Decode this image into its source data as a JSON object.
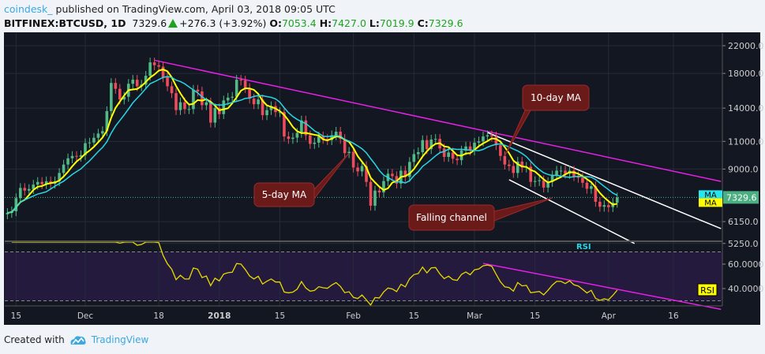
{
  "header": {
    "user": "coindesk_",
    "published": "published on TradingView.com, April 03, 2018 09:05 UTC",
    "symbol": "BITFINEX:BTCUSD, 1D",
    "last": "7329.6",
    "change": "+276.3 (+3.92%)",
    "o_label": "O:",
    "o": "7053.4",
    "h_label": "H:",
    "h": "7427.0",
    "l_label": "L:",
    "l": "7019.9",
    "c_label": "C:",
    "c": "7329.6",
    "change_icon": "triangle-up-icon"
  },
  "footer": {
    "created_with": "Created with",
    "brand": "TradingView",
    "logo_icon": "tradingview-cloud-icon"
  },
  "colors": {
    "background": "#131722",
    "up": "#53b987",
    "down": "#eb4d5c",
    "ma5": "#ffff00",
    "ma10": "#26d7e6",
    "trendline": "#e81fe8",
    "channel": "#ffffff",
    "rsi": "#e8d800",
    "rsi_band": "#261a40",
    "price_label": "#4caf82",
    "callout": "#6b1a1a"
  },
  "chart_data": {
    "type": "candlestick",
    "price_scale": "log",
    "grid": true,
    "start_date": "2017-11-13",
    "interval": "1D",
    "close": [
      6550,
      6630,
      7290,
      7850,
      7700,
      7790,
      8040,
      8200,
      8070,
      8240,
      8100,
      8240,
      8750,
      9300,
      9730,
      9900,
      9840,
      9950,
      10860,
      10910,
      11290,
      11640,
      11850,
      13700,
      16800,
      16100,
      14900,
      15200,
      16700,
      17200,
      16400,
      16600,
      17700,
      19500,
      19100,
      18900,
      17500,
      16400,
      15600,
      13800,
      14600,
      13900,
      13900,
      16000,
      15800,
      14300,
      14600,
      12600,
      14000,
      13400,
      14800,
      15100,
      15200,
      17200,
      17100,
      16200,
      15000,
      14400,
      14900,
      13300,
      13800,
      14200,
      13600,
      13600,
      11400,
      11200,
      11300,
      11700,
      12800,
      11500,
      10800,
      10900,
      11400,
      11200,
      11100,
      11500,
      11800,
      11200,
      10100,
      10200,
      9100,
      8850,
      9200,
      8200,
      6900,
      7700,
      7600,
      8250,
      8700,
      8550,
      8100,
      8900,
      8500,
      9480,
      10030,
      10170,
      11100,
      10400,
      11150,
      11200,
      10450,
      9830,
      10150,
      9700,
      9600,
      10300,
      10600,
      10300,
      10900,
      11000,
      11400,
      11500,
      11400,
      10700,
      9900,
      9300,
      9200,
      8750,
      9500,
      9100,
      9150,
      8200,
      8250,
      8300,
      7870,
      8200,
      8600,
      8900,
      8900,
      8700,
      8900,
      8550,
      8450,
      8150,
      7800,
      7950,
      7100,
      6850,
      6930,
      6830,
      7053.4,
      7329.6
    ],
    "last_price": "7329.6",
    "y_ticks": [
      "22000.0",
      "18000.0",
      "14000.0",
      "11000.0",
      "9000.0",
      "6150.0",
      "5250.0"
    ],
    "y_tick_values": [
      22000,
      18000,
      14000,
      11000,
      9000,
      6150,
      5250
    ],
    "x_ticks": [
      {
        "label": "15",
        "date": "2017-11-15"
      },
      {
        "label": "Dec",
        "date": "2017-12-01"
      },
      {
        "label": "18",
        "date": "2017-12-18"
      },
      {
        "label": "2018",
        "date": "2018-01-01"
      },
      {
        "label": "15",
        "date": "2018-01-15"
      },
      {
        "label": "Feb",
        "date": "2018-02-01"
      },
      {
        "label": "15",
        "date": "2018-02-15"
      },
      {
        "label": "Mar",
        "date": "2018-03-01"
      },
      {
        "label": "15",
        "date": "2018-03-15"
      },
      {
        "label": "Apr",
        "date": "2018-04-01"
      },
      {
        "label": "16",
        "date": "2018-04-16"
      }
    ],
    "indicators": [
      {
        "name": "MA",
        "period": 5,
        "color": "#ffff00"
      },
      {
        "name": "MA",
        "period": 10,
        "color": "#26d7e6"
      }
    ],
    "ma_labels": [
      "MA",
      "MA"
    ],
    "rsi": {
      "title": "RSI",
      "label": "RSI",
      "period": 14,
      "bands": [
        30,
        70
      ],
      "y_ticks": [
        "60.0000",
        "40.0000"
      ],
      "y_tick_values": [
        60,
        40
      ]
    },
    "trendlines": [
      {
        "pane": "price",
        "color": "#e81fe8",
        "from": [
          "2017-12-17",
          19800
        ],
        "to": [
          "2018-04-27",
          8230
        ]
      },
      {
        "pane": "price",
        "color": "#ffffff",
        "from": [
          "2018-03-04",
          11735
        ],
        "to": [
          "2018-04-27",
          5845
        ]
      },
      {
        "pane": "price",
        "color": "#ffffff",
        "from": [
          "2018-03-09",
          8330
        ],
        "to": [
          "2018-04-07",
          5250
        ]
      },
      {
        "pane": "rsi",
        "color": "#e81fe8",
        "from": [
          "2018-03-03",
          60.6
        ],
        "to": [
          "2018-04-27",
          23
        ]
      }
    ],
    "annotations": [
      {
        "text": "10-day MA",
        "target": [
          "2018-03-08",
          9900
        ]
      },
      {
        "text": "5-day MA",
        "target": [
          "2018-01-31",
          10100
        ]
      },
      {
        "text": "Falling channel",
        "target": [
          "2018-03-19",
          7300
        ]
      }
    ]
  }
}
